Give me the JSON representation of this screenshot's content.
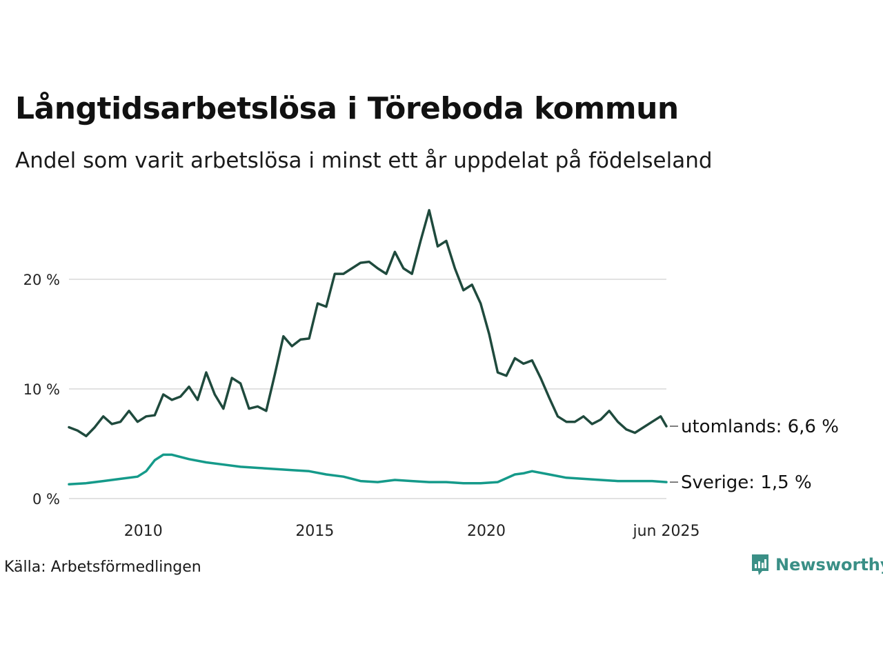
{
  "title": "Långtidsarbetslösa i Töreboda kommun",
  "subtitle": "Andel som varit arbetslösa i minst ett år uppdelat på födelseland",
  "source": "Källa: Arbetsförmedlingen",
  "brand": {
    "name": "Newsworthy",
    "icon": "newsworthy-logo-icon",
    "color": "#3a8f86"
  },
  "chart_data": {
    "type": "line",
    "xlim": [
      "2008-01",
      "2025-06"
    ],
    "ylim": [
      0,
      26
    ],
    "grid": true,
    "y_ticks": [
      {
        "value": 0,
        "label": "0 %"
      },
      {
        "value": 10,
        "label": "10 %"
      },
      {
        "value": 20,
        "label": "20 %"
      }
    ],
    "x_ticks": [
      {
        "value": "2010-03",
        "label": "2010"
      },
      {
        "value": "2015-03",
        "label": "2015"
      },
      {
        "value": "2020-03",
        "label": "2020"
      },
      {
        "value": "2025-06",
        "label": "jun 2025"
      }
    ],
    "series": [
      {
        "name": "utomlands",
        "end_label": "utomlands: 6,6 %",
        "color": "#1f4a3d",
        "points": [
          [
            "2008-01",
            6.5
          ],
          [
            "2008-04",
            6.2
          ],
          [
            "2008-07",
            5.7
          ],
          [
            "2008-10",
            6.5
          ],
          [
            "2009-01",
            7.5
          ],
          [
            "2009-04",
            6.8
          ],
          [
            "2009-07",
            7.0
          ],
          [
            "2009-10",
            8.0
          ],
          [
            "2010-01",
            7.0
          ],
          [
            "2010-04",
            7.5
          ],
          [
            "2010-07",
            7.6
          ],
          [
            "2010-10",
            9.5
          ],
          [
            "2011-01",
            9.0
          ],
          [
            "2011-04",
            9.3
          ],
          [
            "2011-07",
            10.2
          ],
          [
            "2011-10",
            9.0
          ],
          [
            "2012-01",
            11.5
          ],
          [
            "2012-04",
            9.5
          ],
          [
            "2012-07",
            8.2
          ],
          [
            "2012-10",
            11.0
          ],
          [
            "2013-01",
            10.5
          ],
          [
            "2013-04",
            8.2
          ],
          [
            "2013-07",
            8.4
          ],
          [
            "2013-10",
            8.0
          ],
          [
            "2014-01",
            11.3
          ],
          [
            "2014-04",
            14.8
          ],
          [
            "2014-07",
            13.9
          ],
          [
            "2014-10",
            14.5
          ],
          [
            "2015-01",
            14.6
          ],
          [
            "2015-04",
            17.8
          ],
          [
            "2015-07",
            17.5
          ],
          [
            "2015-10",
            20.5
          ],
          [
            "2016-01",
            20.5
          ],
          [
            "2016-04",
            21.0
          ],
          [
            "2016-07",
            21.5
          ],
          [
            "2016-10",
            21.6
          ],
          [
            "2017-01",
            21.0
          ],
          [
            "2017-04",
            20.5
          ],
          [
            "2017-07",
            22.5
          ],
          [
            "2017-10",
            21.0
          ],
          [
            "2018-01",
            20.5
          ],
          [
            "2018-04",
            23.5
          ],
          [
            "2018-07",
            26.3
          ],
          [
            "2018-10",
            23.0
          ],
          [
            "2019-01",
            23.5
          ],
          [
            "2019-04",
            21.0
          ],
          [
            "2019-07",
            19.0
          ],
          [
            "2019-10",
            19.5
          ],
          [
            "2020-01",
            17.8
          ],
          [
            "2020-04",
            15.0
          ],
          [
            "2020-07",
            11.5
          ],
          [
            "2020-10",
            11.2
          ],
          [
            "2021-01",
            12.8
          ],
          [
            "2021-04",
            12.3
          ],
          [
            "2021-07",
            12.6
          ],
          [
            "2021-10",
            11.0
          ],
          [
            "2022-01",
            9.2
          ],
          [
            "2022-04",
            7.5
          ],
          [
            "2022-07",
            7.0
          ],
          [
            "2022-10",
            7.0
          ],
          [
            "2023-01",
            7.5
          ],
          [
            "2023-04",
            6.8
          ],
          [
            "2023-07",
            7.2
          ],
          [
            "2023-10",
            8.0
          ],
          [
            "2024-01",
            7.0
          ],
          [
            "2024-04",
            6.3
          ],
          [
            "2024-07",
            6.0
          ],
          [
            "2024-10",
            6.5
          ],
          [
            "2025-01",
            7.0
          ],
          [
            "2025-04",
            7.5
          ],
          [
            "2025-06",
            6.6
          ]
        ]
      },
      {
        "name": "Sverige",
        "end_label": "Sverige: 1,5 %",
        "color": "#159a8a",
        "points": [
          [
            "2008-01",
            1.3
          ],
          [
            "2008-07",
            1.4
          ],
          [
            "2009-01",
            1.6
          ],
          [
            "2009-07",
            1.8
          ],
          [
            "2010-01",
            2.0
          ],
          [
            "2010-04",
            2.5
          ],
          [
            "2010-07",
            3.5
          ],
          [
            "2010-10",
            4.0
          ],
          [
            "2011-01",
            4.0
          ],
          [
            "2011-07",
            3.6
          ],
          [
            "2012-01",
            3.3
          ],
          [
            "2012-07",
            3.1
          ],
          [
            "2013-01",
            2.9
          ],
          [
            "2013-07",
            2.8
          ],
          [
            "2014-01",
            2.7
          ],
          [
            "2014-07",
            2.6
          ],
          [
            "2015-01",
            2.5
          ],
          [
            "2015-07",
            2.2
          ],
          [
            "2016-01",
            2.0
          ],
          [
            "2016-07",
            1.6
          ],
          [
            "2017-01",
            1.5
          ],
          [
            "2017-07",
            1.7
          ],
          [
            "2018-01",
            1.6
          ],
          [
            "2018-07",
            1.5
          ],
          [
            "2019-01",
            1.5
          ],
          [
            "2019-07",
            1.4
          ],
          [
            "2020-01",
            1.4
          ],
          [
            "2020-07",
            1.5
          ],
          [
            "2021-01",
            2.2
          ],
          [
            "2021-04",
            2.3
          ],
          [
            "2021-07",
            2.5
          ],
          [
            "2022-01",
            2.2
          ],
          [
            "2022-07",
            1.9
          ],
          [
            "2023-01",
            1.8
          ],
          [
            "2023-07",
            1.7
          ],
          [
            "2024-01",
            1.6
          ],
          [
            "2024-07",
            1.6
          ],
          [
            "2025-01",
            1.6
          ],
          [
            "2025-06",
            1.5
          ]
        ]
      }
    ]
  }
}
